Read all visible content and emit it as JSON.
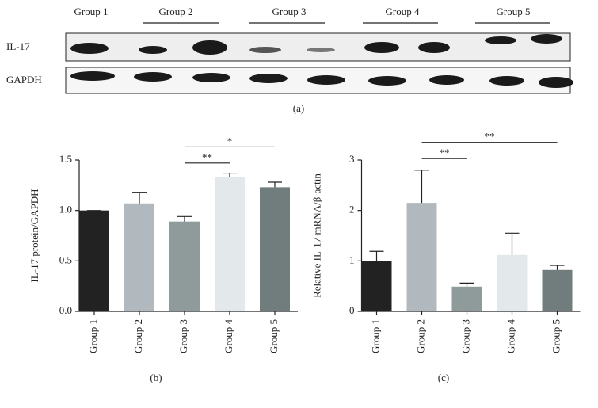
{
  "blot": {
    "groups": [
      "Group 1",
      "Group 2",
      "Group 3",
      "Group 4",
      "Group 5"
    ],
    "rows": [
      "IL-17",
      "GAPDH"
    ],
    "label": "(a)"
  },
  "chart_data": [
    {
      "type": "bar",
      "label": "(b)",
      "y_label": "IL-17 protein/GAPDH",
      "categories": [
        "Group 1",
        "Group 2",
        "Group 3",
        "Group 4",
        "Group 5"
      ],
      "values": [
        1.0,
        1.07,
        0.89,
        1.33,
        1.23
      ],
      "errors": [
        0,
        0.11,
        0.05,
        0.04,
        0.05
      ],
      "colors": [
        "#222222",
        "#b1b9be",
        "#8f9b9b",
        "#e3e9eb",
        "#717d7d"
      ],
      "ylim": [
        0,
        1.5
      ],
      "yticks": [
        {
          "value": 0,
          "label": "0.0"
        },
        0.5,
        {
          "value": 1,
          "label": "1.0"
        },
        1.5
      ],
      "annotations": [
        {
          "text": "**",
          "start": "Group 3",
          "end": "Group 4",
          "y": 1.47
        },
        {
          "text": "*",
          "start": "Group 3",
          "end": "Group 5",
          "y": 1.63
        }
      ]
    },
    {
      "type": "bar",
      "label": "(c)",
      "y_label": "Relative IL-17 mRNA/β-actin",
      "categories": [
        "Group 1",
        "Group 2",
        "Group 3",
        "Group 4",
        "Group 5"
      ],
      "values": [
        1.0,
        2.15,
        0.49,
        1.12,
        0.82
      ],
      "errors": [
        0.19,
        0.65,
        0.07,
        0.43,
        0.09
      ],
      "colors": [
        "#222222",
        "#b1b9be",
        "#8f9b9b",
        "#e3e9eb",
        "#717d7d"
      ],
      "ylim": [
        0,
        3
      ],
      "yticks": [
        0,
        1,
        2,
        3
      ],
      "annotations": [
        {
          "text": "**",
          "start": "Group 2",
          "end": "Group 3",
          "y": 3.03
        },
        {
          "text": "**",
          "start": "Group 2",
          "end": "Group 5",
          "y": 3.35
        }
      ]
    }
  ]
}
